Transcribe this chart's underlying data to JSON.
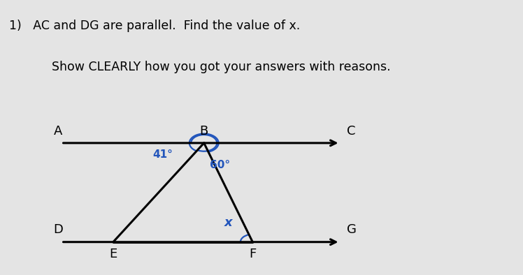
{
  "bg_color": "#e4e4e4",
  "box_color": "#ffffff",
  "title_line1": "1)   AC and DG are parallel.  Find the value of x.",
  "title_line2": "      Show CLEARLY how you got your answers with reasons.",
  "label_A": "A",
  "label_B": "B",
  "label_C": "C",
  "label_D": "D",
  "label_E": "E",
  "label_F": "F",
  "label_G": "G",
  "angle_41": "41°",
  "angle_60": "60°",
  "angle_x": "x",
  "line_color": "#000000",
  "angle_arc_color": "#2255bb",
  "angle_text_color": "#2255bb",
  "lw_main": 2.2,
  "lw_arc": 1.6
}
